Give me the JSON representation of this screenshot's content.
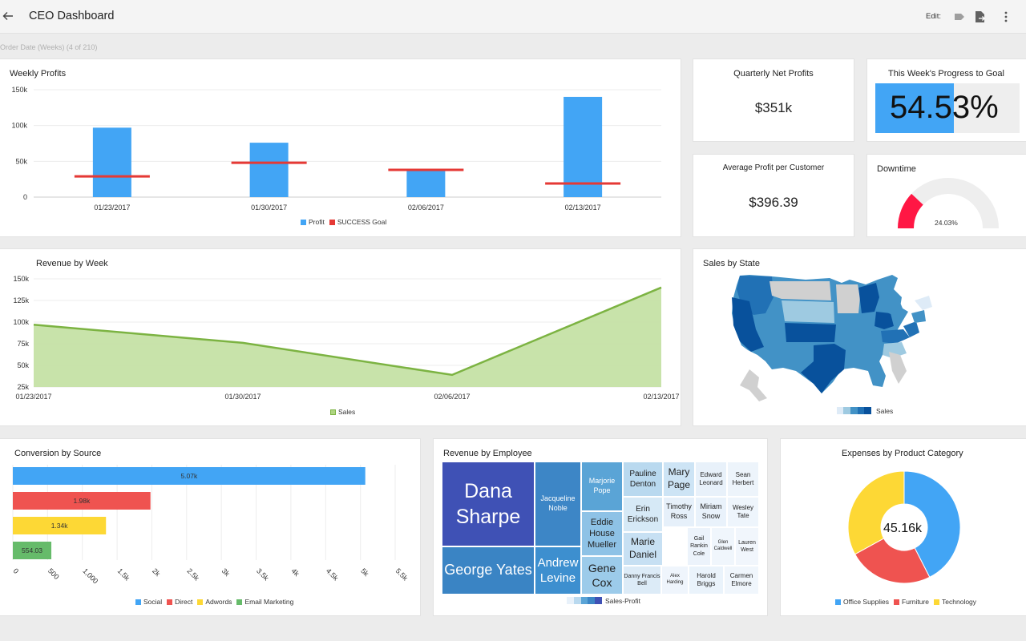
{
  "header": {
    "title": "CEO Dashboard",
    "edit_label": "Edit:"
  },
  "filter": {
    "label": "Order Date (Weeks) (4 of 210)"
  },
  "icons": {
    "back": "arrow-left-icon",
    "toggle": "toggle-icon",
    "export": "export-icon",
    "more": "more-vert-icon"
  },
  "weekly_profits": {
    "title": "Weekly Profits",
    "chart_data": {
      "type": "bar",
      "categories": [
        "01/23/2017",
        "01/30/2017",
        "02/06/2017",
        "02/13/2017"
      ],
      "series": [
        {
          "name": "Profit",
          "values": [
            97000,
            76000,
            37000,
            140000
          ],
          "color": "#42a5f5"
        },
        {
          "name": "SUCCESS Goal",
          "values": [
            29000,
            48000,
            38000,
            19000
          ],
          "color": "#e53935"
        }
      ],
      "ylim": [
        0,
        150000
      ],
      "yticks": [
        "0",
        "50k",
        "100k",
        "150k"
      ],
      "legend": "bottom"
    }
  },
  "quarterly": {
    "title": "Quarterly Net Profits",
    "value": "$351k"
  },
  "progress": {
    "title": "This Week's Progress to Goal",
    "value": "54.53%",
    "fraction": 0.5453,
    "color": "#42a5f5"
  },
  "avg_profit": {
    "title": "Average Profit per Customer",
    "value": "$396.39"
  },
  "downtime": {
    "title": "Downtime",
    "value": "24.03%",
    "fraction": 0.2403,
    "color": "#ff1744"
  },
  "revenue_by_week": {
    "title": "Revenue by Week",
    "chart_data": {
      "type": "area",
      "x": [
        "01/23/2017",
        "01/30/2017",
        "02/06/2017",
        "02/13/2017"
      ],
      "series": [
        {
          "name": "Sales",
          "values": [
            97000,
            76000,
            39000,
            140000
          ],
          "color": "#7cb342"
        }
      ],
      "ylim": [
        25000,
        150000
      ],
      "yticks": [
        "25k",
        "50k",
        "75k",
        "100k",
        "125k",
        "150k"
      ],
      "legend": "bottom"
    }
  },
  "sales_by_state": {
    "title": "Sales by State",
    "legend": "Sales",
    "colors": [
      "#ffffff",
      "#deebf7",
      "#9ecae1",
      "#4292c6",
      "#2171b5",
      "#08519c"
    ]
  },
  "conversion": {
    "title": "Conversion by Source",
    "chart_data": {
      "type": "bar",
      "orientation": "horizontal",
      "categories": [
        "Social",
        "Direct",
        "Adwords",
        "Email Marketing"
      ],
      "values": [
        5070,
        1980,
        1340,
        554.03
      ],
      "labels": [
        "5.07k",
        "1.98k",
        "1.34k",
        "554.03"
      ],
      "colors": [
        "#42a5f5",
        "#ef5350",
        "#fdd835",
        "#66bb6a"
      ],
      "xlim": [
        0,
        5500
      ],
      "xticks": [
        "0",
        "500",
        "1,000",
        "1.5k",
        "2k",
        "2.5k",
        "3k",
        "3.5k",
        "4k",
        "4.5k",
        "5k",
        "5.5k"
      ],
      "legend": "bottom"
    }
  },
  "revenue_by_employee": {
    "title": "Revenue by Employee",
    "legend": "Sales-Profit",
    "cells": [
      {
        "label": "Dana Sharpe",
        "color": "#3f51b5"
      },
      {
        "label": "Jacqueline Noble",
        "color": "#3d86c6"
      },
      {
        "label": "Marjorie Pope",
        "color": "#5aa4d6"
      },
      {
        "label": "Pauline Denton",
        "color": "#b9d9ef"
      },
      {
        "label": "Mary Page",
        "color": "#cde4f5"
      },
      {
        "label": "Edward Leonard",
        "color": "#e8f1fa"
      },
      {
        "label": "Sean Herbert",
        "color": "#edf4fb"
      },
      {
        "label": "Eddie House Mueller",
        "color": "#8ec2e6"
      },
      {
        "label": "Erin Erickson",
        "color": "#d6e9f6"
      },
      {
        "label": "Timothy Ross",
        "color": "#e6f0fa"
      },
      {
        "label": "Miriam Snow",
        "color": "#e9f2fb"
      },
      {
        "label": "Wesley Tate",
        "color": "#eef5fc"
      },
      {
        "label": "Marie Daniel",
        "color": "#c7e0f3"
      },
      {
        "label": "Gail Rankin Cole",
        "color": "#ecf3fb"
      },
      {
        "label": "Glen Caldwell",
        "color": "#f0f6fc"
      },
      {
        "label": "Lauren West",
        "color": "#f1f6fc"
      },
      {
        "label": "George Yates",
        "color": "#3a84c4"
      },
      {
        "label": "Andrew Levine",
        "color": "#3d8fcf"
      },
      {
        "label": "Gene Cox",
        "color": "#9ccbea"
      },
      {
        "label": "Danny Francis Bell",
        "color": "#dcebf7"
      },
      {
        "label": "Alex Harding",
        "color": "#eff5fc"
      },
      {
        "label": "Harold Briggs",
        "color": "#eaf3fb"
      },
      {
        "label": "Carmen Elmore",
        "color": "#f0f6fc"
      }
    ]
  },
  "expenses": {
    "title": "Expenses by Product Category",
    "center_label": "45.16k",
    "chart_data": {
      "type": "pie",
      "categories": [
        "Office Supplies",
        "Furniture",
        "Technology"
      ],
      "values": [
        42.5,
        24.5,
        33.0
      ],
      "colors": [
        "#42a5f5",
        "#ef5350",
        "#fdd835"
      ],
      "legend": "bottom"
    }
  }
}
